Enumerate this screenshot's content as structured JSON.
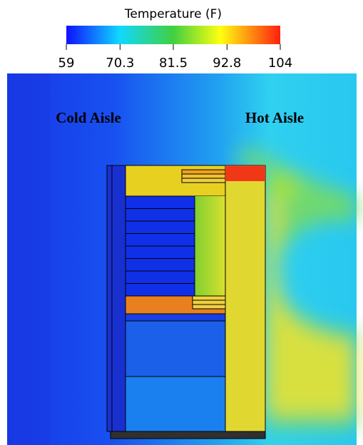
{
  "colorbar": {
    "title": "Temperature (F)",
    "range": [
      59,
      104
    ],
    "ticks": [
      59,
      70.3,
      81.5,
      92.8,
      104
    ]
  },
  "labels": {
    "left": "Cold Aisle",
    "right": "Hot Aisle"
  }
}
